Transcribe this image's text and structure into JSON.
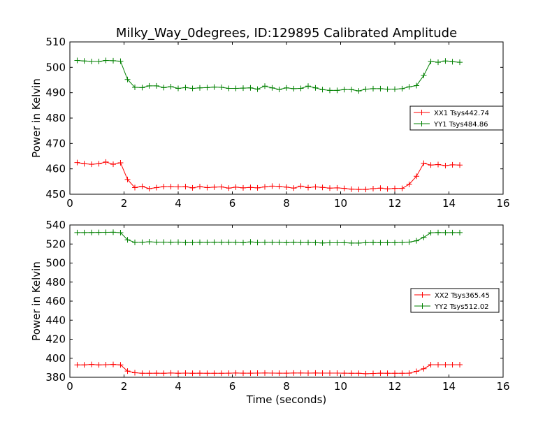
{
  "figure": {
    "title": "Milky_Way_0degrees, ID:129895 Calibrated Amplitude"
  },
  "chart_data": [
    {
      "type": "line",
      "title": "Milky_Way_0degrees, ID:129895 Calibrated Amplitude",
      "xlabel": "",
      "ylabel": "Power in Kelvin",
      "xlim": [
        0,
        16
      ],
      "ylim": [
        450,
        510
      ],
      "xticks": [
        "0",
        "2",
        "4",
        "6",
        "8",
        "10",
        "12",
        "14",
        "16"
      ],
      "yticks": [
        "450",
        "460",
        "470",
        "480",
        "490",
        "500",
        "510"
      ],
      "grid": false,
      "legend_position": "center-right",
      "x": [
        0.27,
        0.53,
        0.8,
        1.07,
        1.33,
        1.6,
        1.87,
        2.13,
        2.4,
        2.67,
        2.93,
        3.2,
        3.47,
        3.73,
        4.0,
        4.27,
        4.53,
        4.8,
        5.07,
        5.33,
        5.6,
        5.87,
        6.13,
        6.4,
        6.67,
        6.93,
        7.2,
        7.47,
        7.73,
        8.0,
        8.27,
        8.53,
        8.8,
        9.07,
        9.33,
        9.6,
        9.87,
        10.13,
        10.4,
        10.67,
        10.93,
        11.2,
        11.47,
        11.73,
        12.0,
        12.27,
        12.53,
        12.8,
        13.07,
        13.33,
        13.6,
        13.87,
        14.13,
        14.4
      ],
      "series": [
        {
          "name": "XX1 Tsys442.74",
          "color": "#ff0000",
          "values": [
            462.5,
            462.0,
            461.8,
            462.0,
            462.7,
            461.8,
            462.4,
            455.8,
            452.6,
            453.1,
            452.2,
            452.6,
            453.0,
            453.0,
            452.9,
            453.0,
            452.5,
            453.0,
            452.6,
            452.8,
            452.9,
            452.4,
            452.8,
            452.5,
            452.7,
            452.5,
            452.9,
            453.2,
            453.1,
            452.8,
            452.4,
            453.2,
            452.6,
            452.9,
            452.7,
            452.4,
            452.5,
            452.3,
            452.0,
            451.9,
            451.9,
            452.2,
            452.4,
            452.1,
            452.3,
            452.3,
            453.9,
            457.1,
            462.2,
            461.5,
            461.7,
            461.3,
            461.6,
            461.5
          ]
        },
        {
          "name": "YY1 Tsys484.86",
          "color": "#008000",
          "values": [
            502.7,
            502.5,
            502.3,
            502.3,
            502.7,
            502.6,
            502.4,
            495.2,
            492.1,
            492.0,
            492.7,
            492.7,
            492.0,
            492.4,
            491.7,
            492.0,
            491.7,
            491.9,
            492.0,
            492.2,
            492.1,
            491.7,
            491.7,
            491.8,
            491.9,
            491.4,
            492.6,
            491.9,
            491.3,
            491.9,
            491.6,
            491.7,
            492.6,
            491.9,
            491.2,
            490.9,
            490.9,
            491.2,
            491.2,
            490.7,
            491.4,
            491.6,
            491.6,
            491.4,
            491.4,
            491.6,
            492.3,
            492.8,
            496.8,
            502.3,
            502.0,
            502.5,
            502.2,
            502.0
          ]
        }
      ]
    },
    {
      "type": "line",
      "title": "",
      "xlabel": "Time (seconds)",
      "ylabel": "Power in Kelvin",
      "xlim": [
        0,
        16
      ],
      "ylim": [
        380,
        540
      ],
      "xticks": [
        "0",
        "2",
        "4",
        "6",
        "8",
        "10",
        "12",
        "14",
        "16"
      ],
      "yticks": [
        "380",
        "400",
        "420",
        "440",
        "460",
        "480",
        "500",
        "520",
        "540"
      ],
      "grid": false,
      "legend_position": "center-right",
      "x": [
        0.27,
        0.53,
        0.8,
        1.07,
        1.33,
        1.6,
        1.87,
        2.13,
        2.4,
        2.67,
        2.93,
        3.2,
        3.47,
        3.73,
        4.0,
        4.27,
        4.53,
        4.8,
        5.07,
        5.33,
        5.6,
        5.87,
        6.13,
        6.4,
        6.67,
        6.93,
        7.2,
        7.47,
        7.73,
        8.0,
        8.27,
        8.53,
        8.8,
        9.07,
        9.33,
        9.6,
        9.87,
        10.13,
        10.4,
        10.67,
        10.93,
        11.2,
        11.47,
        11.73,
        12.0,
        12.27,
        12.53,
        12.8,
        13.07,
        13.33,
        13.6,
        13.87,
        14.13,
        14.4
      ],
      "series": [
        {
          "name": "XX2 Tsys365.45",
          "color": "#ff0000",
          "values": [
            393.0,
            393.0,
            393.5,
            393.0,
            393.2,
            393.5,
            393.0,
            386.5,
            384.8,
            384.2,
            384.2,
            384.3,
            384.2,
            384.5,
            384.2,
            384.4,
            384.2,
            384.3,
            384.2,
            384.2,
            384.2,
            384.3,
            384.5,
            384.3,
            384.3,
            384.4,
            384.5,
            384.4,
            384.3,
            384.3,
            384.5,
            384.5,
            384.4,
            384.5,
            384.4,
            384.4,
            384.4,
            384.3,
            384.2,
            384.2,
            383.8,
            384.0,
            384.3,
            384.2,
            384.2,
            384.2,
            384.3,
            386.2,
            389.0,
            393.2,
            393.2,
            393.2,
            393.2,
            393.2
          ]
        },
        {
          "name": "YY2 Tsys512.02",
          "color": "#008000",
          "values": [
            532.0,
            532.0,
            532.1,
            532.2,
            532.3,
            532.4,
            531.9,
            524.4,
            521.7,
            521.8,
            522.4,
            521.9,
            522.0,
            521.8,
            522.0,
            521.5,
            521.6,
            521.8,
            521.7,
            521.9,
            521.8,
            521.8,
            521.7,
            521.4,
            522.2,
            521.6,
            521.7,
            521.7,
            521.7,
            521.4,
            521.8,
            521.6,
            521.6,
            521.4,
            521.1,
            521.3,
            521.3,
            521.4,
            521.0,
            521.0,
            521.4,
            521.6,
            521.4,
            521.4,
            521.4,
            521.6,
            522.0,
            523.4,
            527.0,
            531.8,
            532.1,
            532.0,
            532.0,
            532.0
          ]
        }
      ]
    }
  ]
}
